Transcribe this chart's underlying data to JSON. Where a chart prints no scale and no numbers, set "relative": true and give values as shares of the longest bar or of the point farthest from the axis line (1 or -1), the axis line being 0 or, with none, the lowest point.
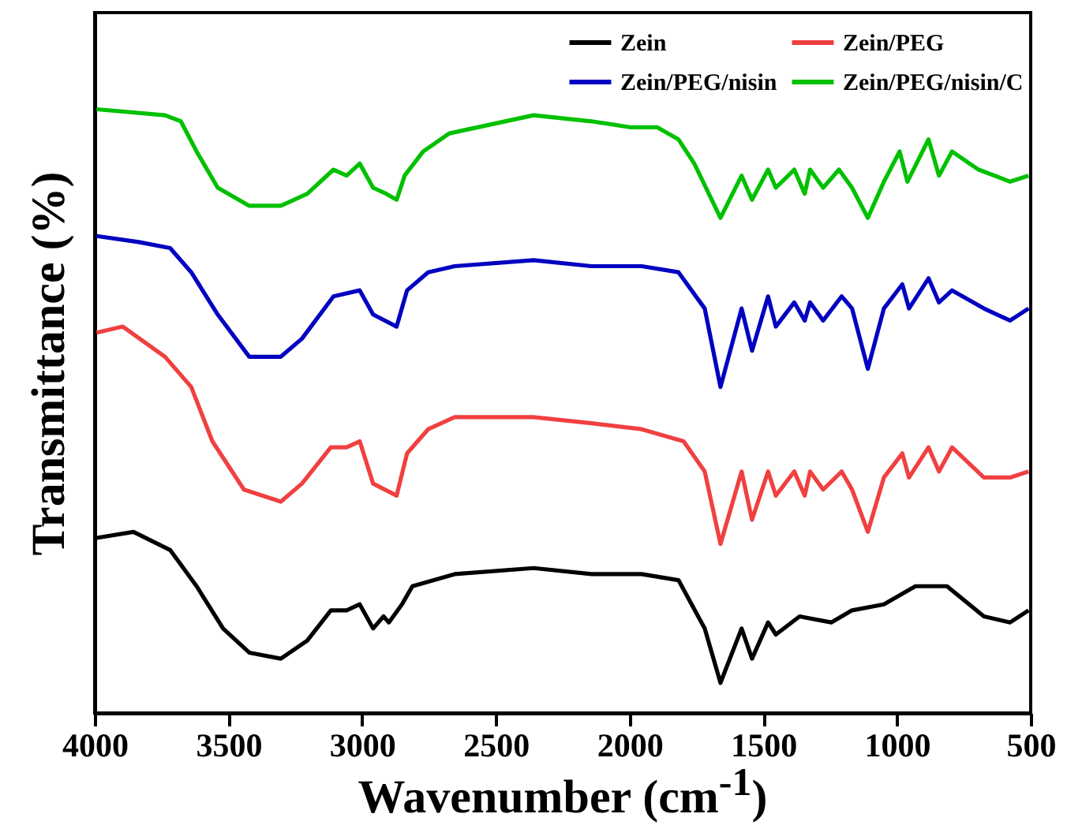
{
  "chart_data": {
    "type": "line",
    "xlabel": "Wavenumber (cm$^{-1}$)",
    "ylabel": "Transmittance (%)",
    "relative": true,
    "xlim": [
      4000,
      500
    ],
    "xticks": [
      4000,
      3500,
      3000,
      2500,
      2000,
      1500,
      1000,
      500
    ],
    "legend": "top right",
    "grid": false,
    "marker": "none",
    "line_style": "solid",
    "series": [
      {
        "name": "Zein",
        "color": "#000000",
        "x": [
          3993,
          3855,
          3718,
          3619,
          3520,
          3422,
          3304,
          3205,
          3117,
          3058,
          3009,
          2959,
          2920,
          2900,
          2851,
          2812,
          2654,
          2359,
          2142,
          1955,
          1817,
          1719,
          1660,
          1581,
          1542,
          1482,
          1453,
          1364,
          1246,
          1168,
          1049,
          931,
          813,
          675,
          577,
          508
        ],
        "values": [
          0.29,
          0.3,
          0.27,
          0.21,
          0.14,
          0.1,
          0.09,
          0.12,
          0.17,
          0.17,
          0.18,
          0.14,
          0.16,
          0.15,
          0.18,
          0.21,
          0.23,
          0.24,
          0.23,
          0.23,
          0.22,
          0.14,
          0.05,
          0.14,
          0.09,
          0.15,
          0.13,
          0.16,
          0.15,
          0.17,
          0.18,
          0.21,
          0.21,
          0.16,
          0.15,
          0.17
        ]
      },
      {
        "name": "Zein/PEG",
        "color": "#f04040",
        "x": [
          3993,
          3895,
          3737,
          3639,
          3560,
          3442,
          3304,
          3225,
          3117,
          3058,
          3009,
          2959,
          2871,
          2832,
          2753,
          2654,
          2359,
          2142,
          1955,
          1798,
          1719,
          1660,
          1581,
          1542,
          1482,
          1453,
          1384,
          1345,
          1325,
          1276,
          1207,
          1168,
          1109,
          1049,
          980,
          955,
          882,
          843,
          794,
          675,
          577,
          508
        ],
        "values": [
          0.63,
          0.64,
          0.59,
          0.54,
          0.45,
          0.37,
          0.35,
          0.38,
          0.44,
          0.44,
          0.45,
          0.38,
          0.36,
          0.43,
          0.47,
          0.49,
          0.49,
          0.48,
          0.47,
          0.45,
          0.4,
          0.28,
          0.4,
          0.32,
          0.4,
          0.36,
          0.4,
          0.36,
          0.4,
          0.37,
          0.4,
          0.37,
          0.3,
          0.39,
          0.43,
          0.39,
          0.44,
          0.4,
          0.44,
          0.39,
          0.39,
          0.4
        ]
      },
      {
        "name": "Zein/PEG/nisin",
        "color": "#0000c0",
        "x": [
          3993,
          3836,
          3718,
          3639,
          3540,
          3422,
          3304,
          3225,
          3107,
          3009,
          2959,
          2871,
          2832,
          2753,
          2654,
          2359,
          2142,
          1955,
          1817,
          1719,
          1660,
          1581,
          1542,
          1482,
          1453,
          1384,
          1345,
          1325,
          1276,
          1207,
          1168,
          1109,
          1049,
          980,
          955,
          882,
          843,
          794,
          675,
          577,
          508
        ],
        "values": [
          0.79,
          0.78,
          0.77,
          0.73,
          0.66,
          0.59,
          0.59,
          0.62,
          0.69,
          0.7,
          0.66,
          0.64,
          0.7,
          0.73,
          0.74,
          0.75,
          0.74,
          0.74,
          0.73,
          0.67,
          0.54,
          0.67,
          0.6,
          0.69,
          0.64,
          0.68,
          0.65,
          0.68,
          0.65,
          0.69,
          0.67,
          0.57,
          0.67,
          0.71,
          0.67,
          0.72,
          0.68,
          0.7,
          0.67,
          0.65,
          0.67
        ]
      },
      {
        "name": "Zein/PEG/nisin/C",
        "color": "#00c000",
        "x": [
          3993,
          3737,
          3678,
          3619,
          3540,
          3422,
          3304,
          3205,
          3107,
          3058,
          3009,
          2959,
          2910,
          2871,
          2841,
          2772,
          2674,
          2359,
          2142,
          1995,
          1955,
          1896,
          1817,
          1758,
          1660,
          1581,
          1542,
          1482,
          1453,
          1384,
          1345,
          1325,
          1276,
          1217,
          1168,
          1109,
          1049,
          990,
          961,
          882,
          843,
          794,
          695,
          577,
          508
        ],
        "values": [
          1,
          0.99,
          0.98,
          0.93,
          0.87,
          0.84,
          0.84,
          0.86,
          0.9,
          0.89,
          0.91,
          0.87,
          0.86,
          0.85,
          0.89,
          0.93,
          0.96,
          0.99,
          0.98,
          0.97,
          0.97,
          0.97,
          0.95,
          0.91,
          0.82,
          0.89,
          0.85,
          0.9,
          0.87,
          0.9,
          0.86,
          0.9,
          0.87,
          0.9,
          0.87,
          0.82,
          0.88,
          0.93,
          0.88,
          0.95,
          0.89,
          0.93,
          0.9,
          0.88,
          0.89
        ]
      }
    ]
  }
}
